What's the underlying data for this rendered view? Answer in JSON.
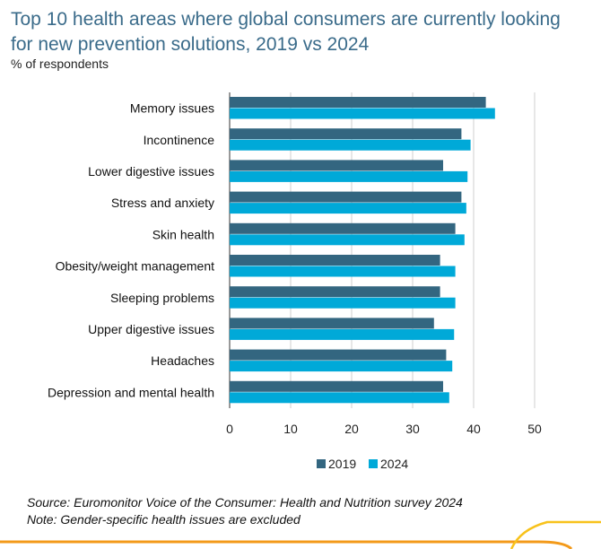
{
  "chart_data": {
    "type": "bar",
    "orientation": "horizontal",
    "title": "Top 10 health areas where global consumers are currently looking for new prevention solutions, 2019 vs 2024",
    "subtitle": "% of respondents",
    "categories": [
      "Memory issues",
      "Incontinence",
      "Lower digestive issues",
      "Stress and anxiety",
      "Skin health",
      "Obesity/weight management",
      "Sleeping problems",
      "Upper digestive issues",
      "Headaches",
      "Depression and mental health"
    ],
    "series": [
      {
        "name": "2019",
        "color": "#336680",
        "values": [
          42,
          38,
          35,
          38,
          37,
          34.5,
          34.5,
          33.5,
          35.5,
          35
        ]
      },
      {
        "name": "2024",
        "color": "#00a9d8",
        "values": [
          43.5,
          39.5,
          39,
          38.8,
          38.5,
          37,
          37,
          36.8,
          36.5,
          36
        ]
      }
    ],
    "xlim": [
      0,
      50
    ],
    "xticks": [
      0,
      10,
      20,
      30,
      40,
      50
    ],
    "grid": true,
    "legend_position": "bottom"
  },
  "footnotes": {
    "source": "Source: Euromonitor Voice of the Consumer: Health and Nutrition survey 2024",
    "note": "Note: Gender-specific health issues are excluded"
  }
}
